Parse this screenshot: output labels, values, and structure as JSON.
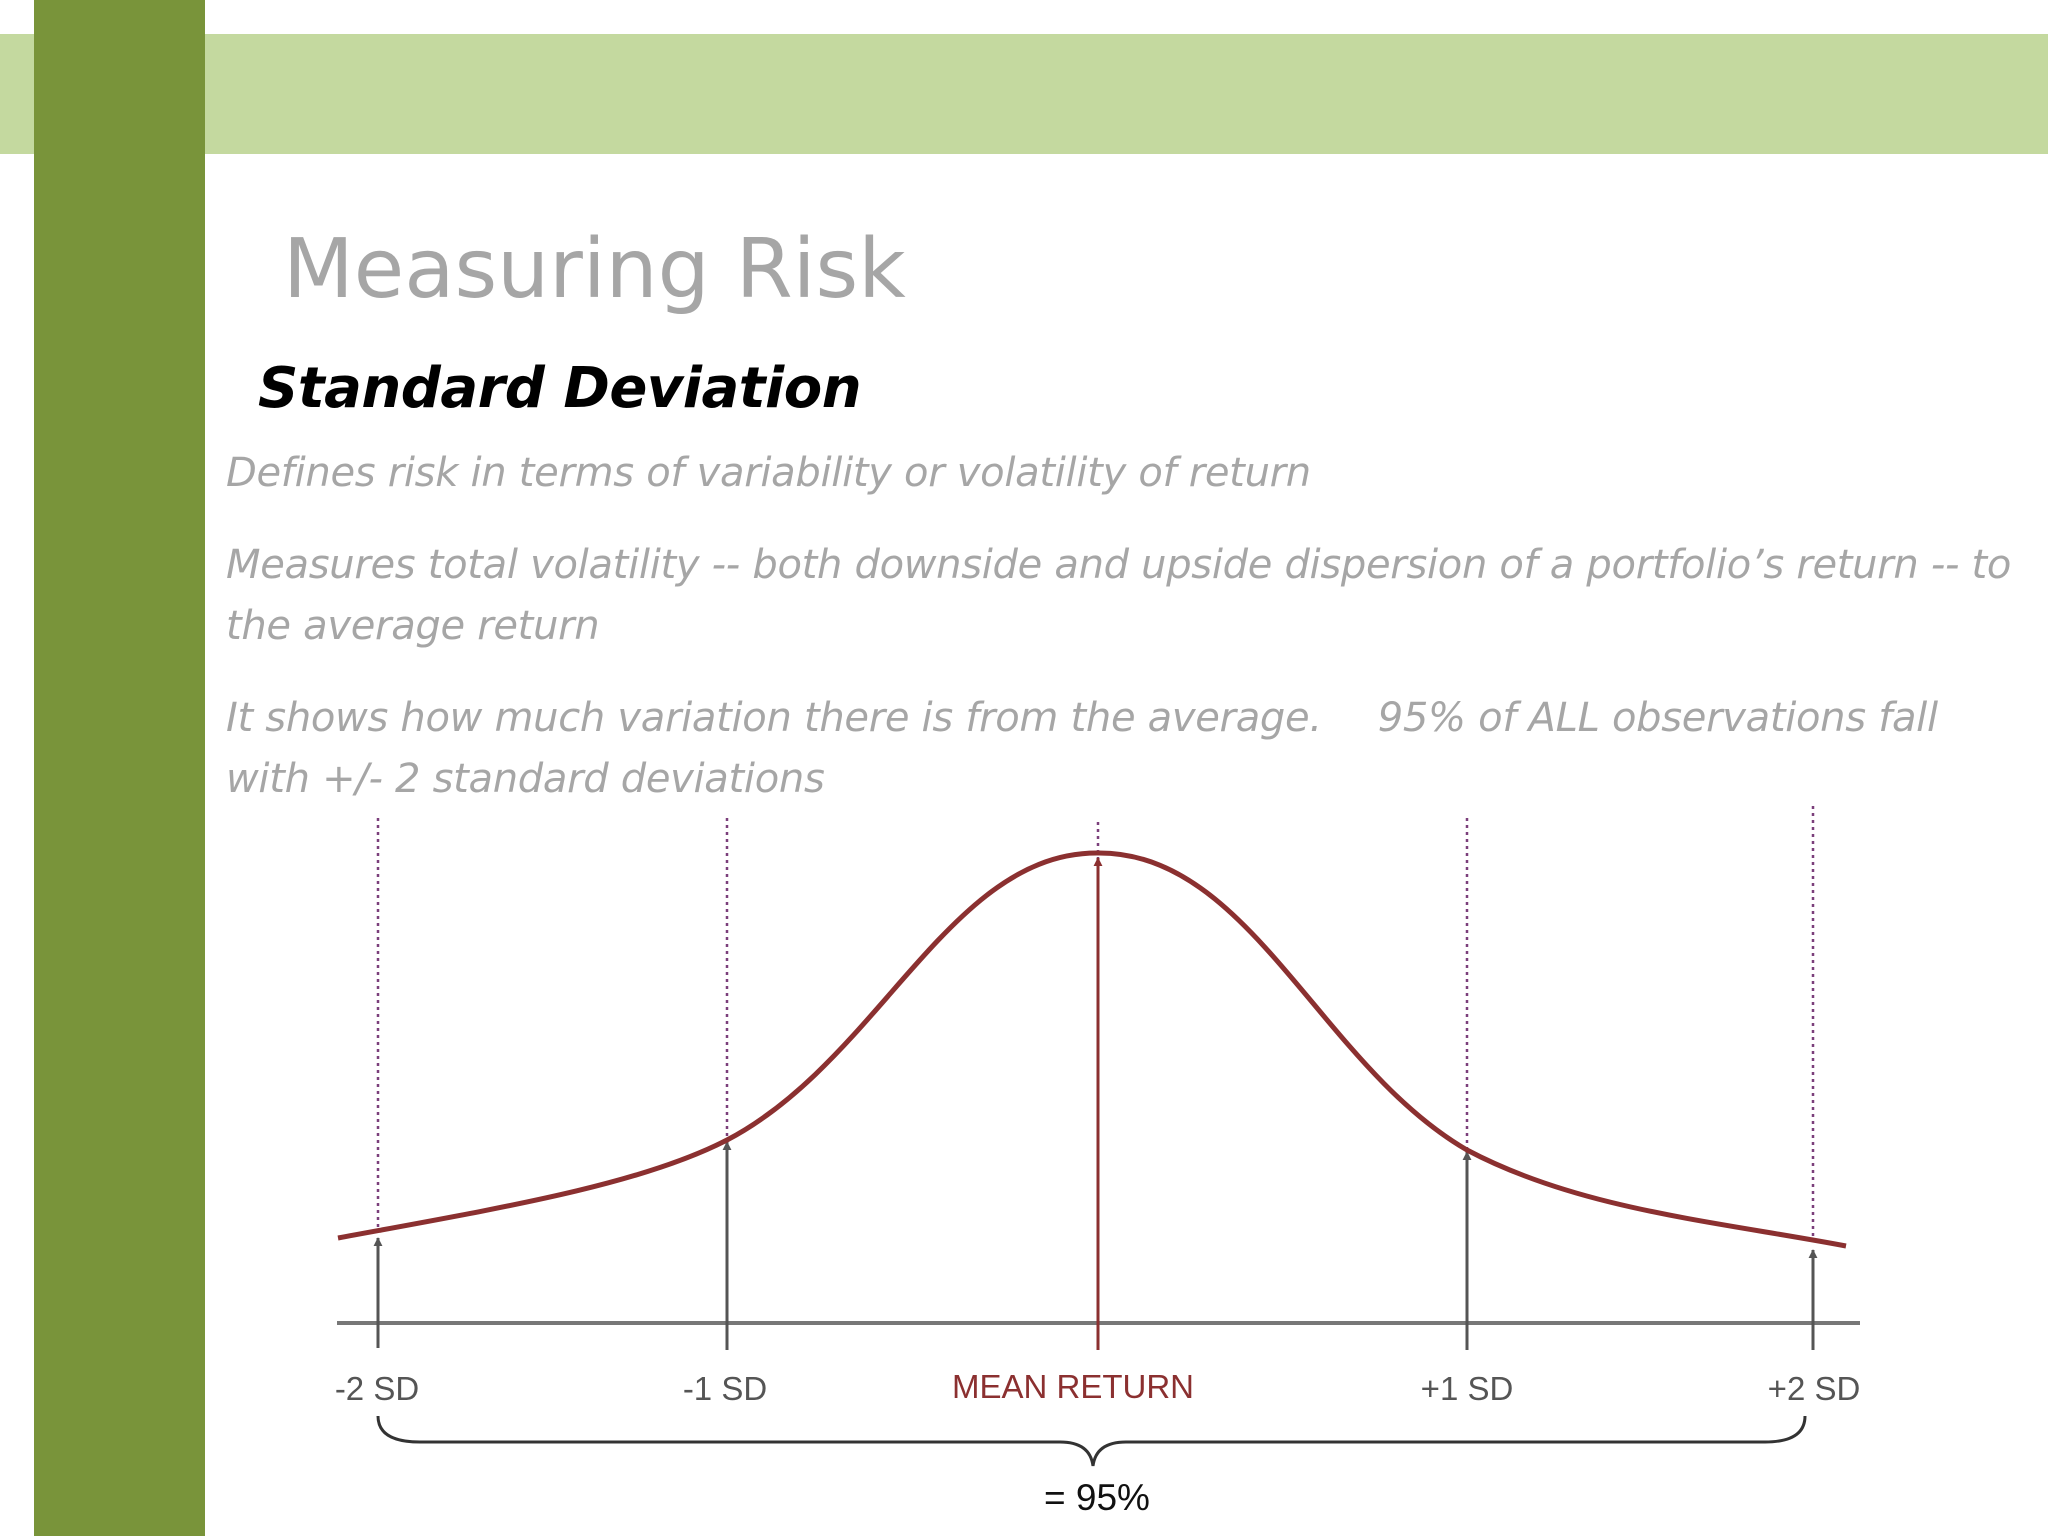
{
  "slide": {
    "title": "Measuring Risk",
    "subtitle": "Standard Deviation",
    "bullets": [
      {
        "text": "Defines risk in terms of variability or volatility of return"
      },
      {
        "text": "Measures total volatility -- both downside and upside dispersion of a portfolio’s return -- to the average return"
      },
      {
        "text": "It shows how much variation there is from the average.",
        "text2": "95% of ALL observations fall with +/- 2 standard deviations"
      }
    ]
  },
  "diagram": {
    "markers": [
      {
        "label": "-2 SD"
      },
      {
        "label": "-1 SD"
      },
      {
        "label": "MEAN RETURN"
      },
      {
        "label": "+1 SD"
      },
      {
        "label": "+2 SD"
      }
    ],
    "brace_label": "= 95%",
    "colors": {
      "curve": "#8b3030",
      "mean_label": "#8b3030",
      "arrows": "#555555",
      "dotted_lines": "#7b3f7b",
      "baseline": "#777777",
      "band": "#c4d99f",
      "sidebar": "#79943a"
    }
  }
}
